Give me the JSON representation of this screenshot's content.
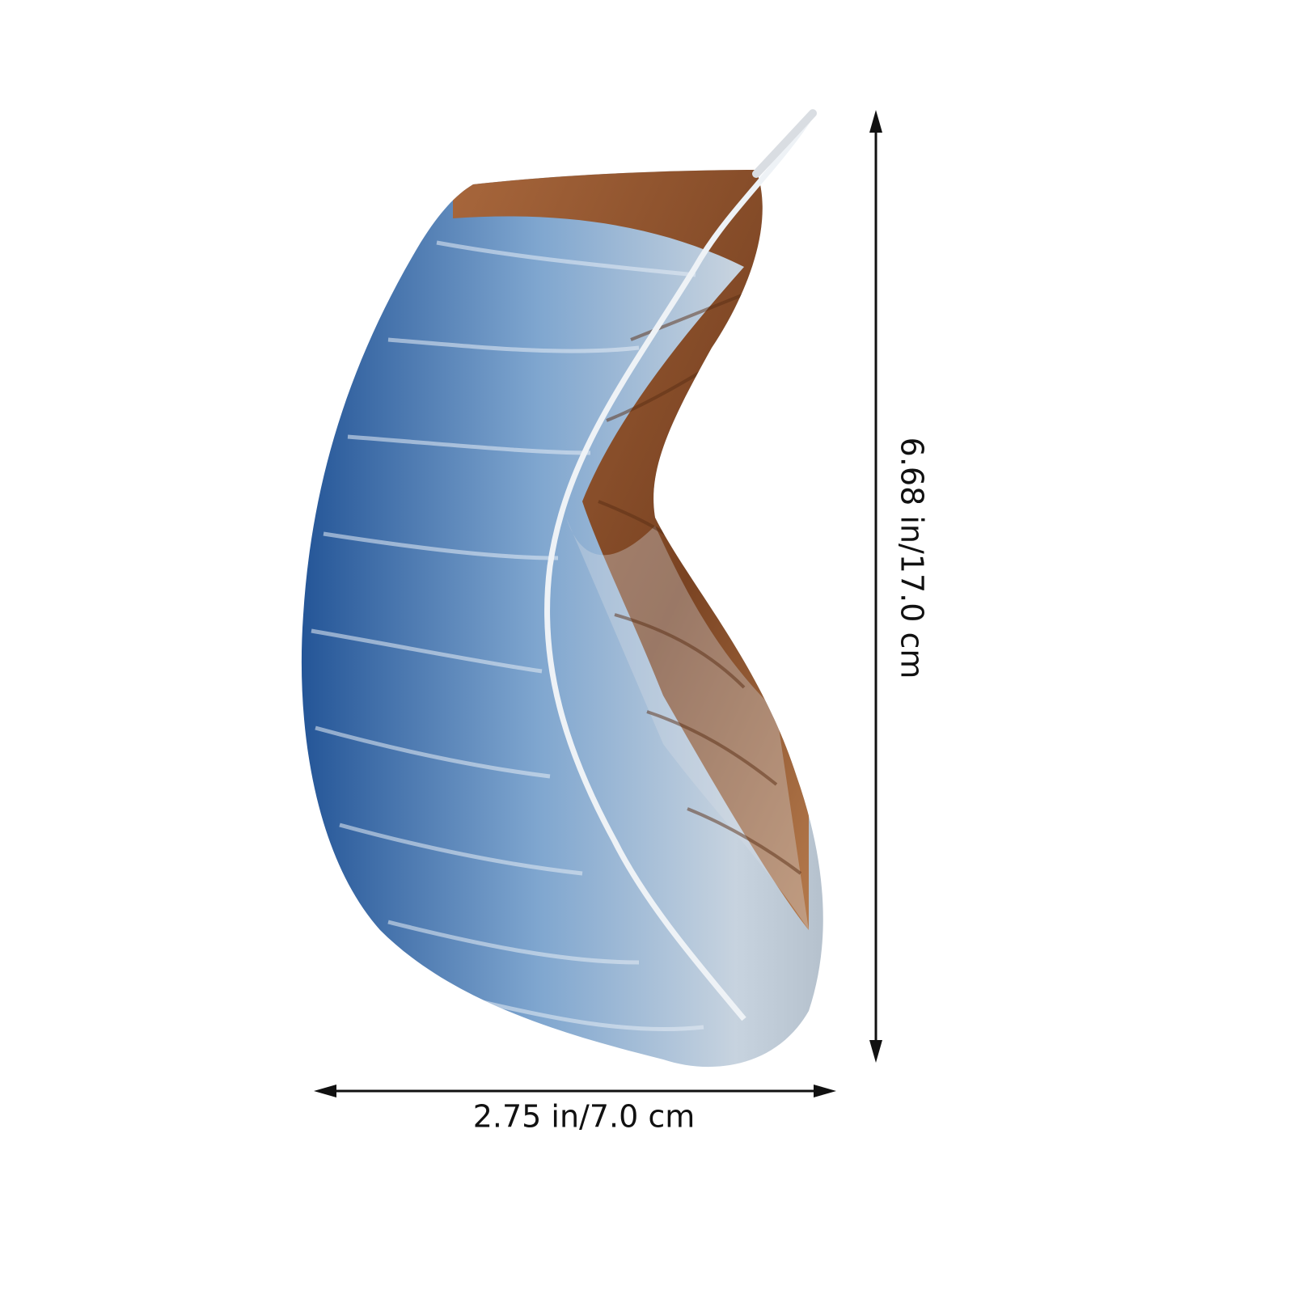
{
  "dimensions": {
    "height": {
      "label": "6.68 in/17.0 cm"
    },
    "width": {
      "label": "2.75 in/7.0 cm"
    }
  }
}
